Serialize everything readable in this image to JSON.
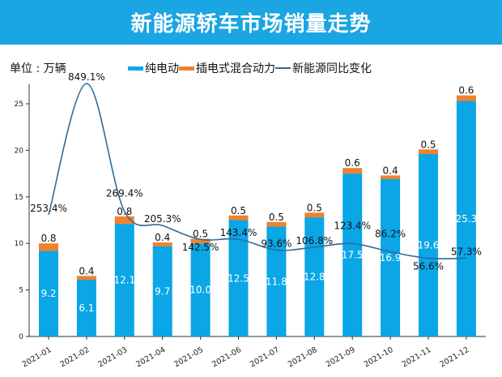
{
  "header": {
    "title": "新能源轿车市场销量走势"
  },
  "unit_label": "单位 : 万辆",
  "legend": [
    {
      "label": "纯电动",
      "color": "#0aa6e6",
      "kind": "bar"
    },
    {
      "label": "插电式混合动力",
      "color": "#f0812d",
      "kind": "bar"
    },
    {
      "label": "新能源同比变化",
      "color": "#2f6b9a",
      "kind": "line"
    }
  ],
  "chart_data": {
    "type": "bar",
    "stacked": true,
    "title": "新能源轿车市场销量走势",
    "ylabel": "单位 : 万辆",
    "xlabel": "",
    "ylim": [
      0,
      27
    ],
    "yticks": [
      0,
      5,
      10,
      15,
      20,
      25
    ],
    "categories": [
      "2021-01",
      "2021-02",
      "2021-03",
      "2021-04",
      "2021-05",
      "2021-06",
      "2021-07",
      "2021-08",
      "2021-09",
      "2021-10",
      "2021-11",
      "2021-12"
    ],
    "series": [
      {
        "name": "纯电动",
        "type": "bar",
        "color": "#0aa6e6",
        "values": [
          9.2,
          6.1,
          12.1,
          9.7,
          10.0,
          12.5,
          11.8,
          12.8,
          17.5,
          16.9,
          19.6,
          25.3
        ],
        "labels": [
          "9.2",
          "6.1",
          "12.1",
          "9.7",
          "10.0",
          "12.5",
          "11.8",
          "12.8",
          "17.5",
          "16.9",
          "19.6",
          "25.3"
        ]
      },
      {
        "name": "插电式混合动力",
        "type": "bar",
        "color": "#f0812d",
        "values": [
          0.8,
          0.4,
          0.8,
          0.4,
          0.5,
          0.5,
          0.5,
          0.5,
          0.6,
          0.4,
          0.5,
          0.6
        ],
        "labels": [
          "0.8",
          "0.4",
          "0.8",
          "0.4",
          "0.5",
          "0.5",
          "0.5",
          "0.5",
          "0.6",
          "0.4",
          "0.5",
          "0.6"
        ]
      },
      {
        "name": "新能源同比变化",
        "type": "line",
        "color": "#2f6b9a",
        "unit": "%",
        "axis": "secondary",
        "values": [
          253.4,
          849.1,
          269.4,
          205.3,
          142.5,
          143.4,
          93.6,
          106.8,
          123.4,
          86.2,
          56.6,
          57.3
        ],
        "labels": [
          "253.4%",
          "849.1%",
          "269.4%",
          "205.3%",
          "142.5%",
          "143.4%",
          "93.6%",
          "106.8%",
          "123.4%",
          "86.2%",
          "56.6%",
          "57.3%"
        ]
      }
    ],
    "legend_position": "top",
    "grid": false
  }
}
